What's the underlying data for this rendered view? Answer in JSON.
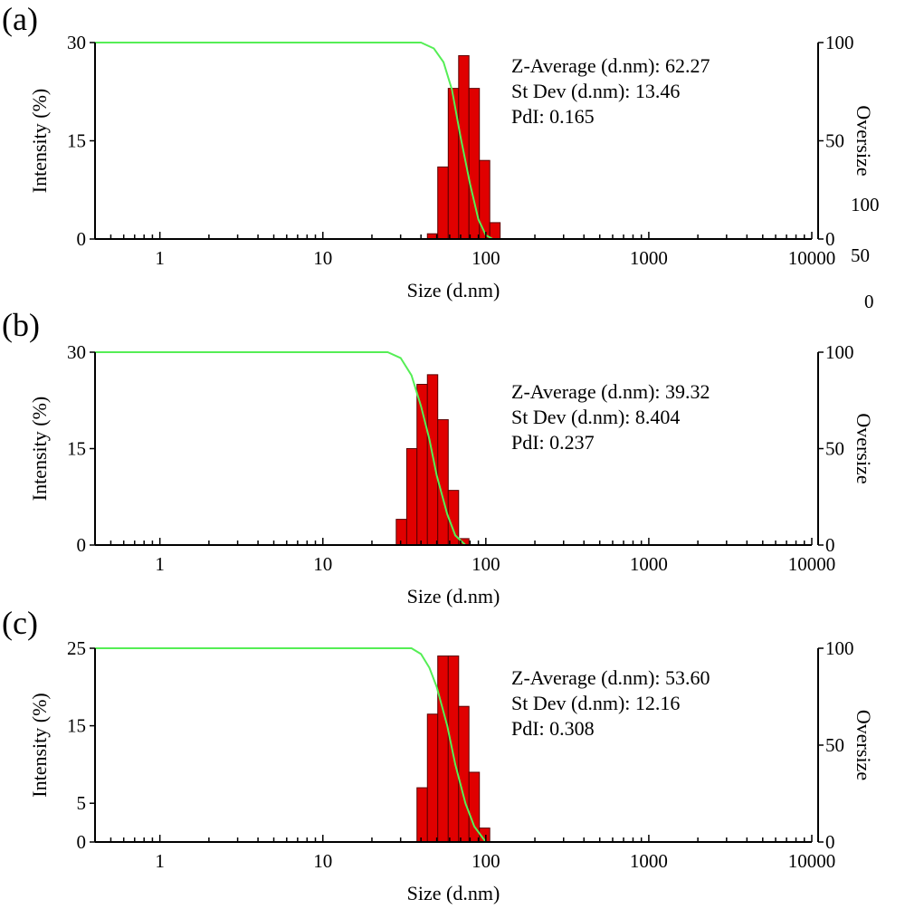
{
  "colors": {
    "bar_fill": "#e00000",
    "bar_stroke": "#5a0000",
    "curve": "#55ee55",
    "axis": "#000000"
  },
  "stray_labels": [
    "100",
    "50",
    "0"
  ],
  "chart_data": [
    {
      "type": "bar",
      "panel_label": "(a)",
      "xlabel": "Size (d.nm)",
      "ylabel": "Intensity (%)",
      "y2label": "Oversize",
      "xscale": "log",
      "xlim": [
        0.4,
        10000
      ],
      "xticks": [
        1,
        10,
        100,
        1000,
        10000
      ],
      "xtick_labels": [
        "1",
        "10",
        "100",
        "1000",
        "10000"
      ],
      "ylim": [
        0,
        30
      ],
      "yticks": [
        0,
        15,
        30
      ],
      "ytick_labels": [
        "0",
        "15",
        "30"
      ],
      "y2lim": [
        0,
        100
      ],
      "y2ticks": [
        0,
        50,
        100
      ],
      "y2tick_labels": [
        "0",
        "50",
        "100"
      ],
      "stats": [
        "Z-Average (d.nm): 62.27",
        "St Dev (d.nm): 13.46",
        "PdI: 0.165"
      ],
      "bars": [
        {
          "x0": 43.8,
          "x1": 50.7,
          "y": 0.8
        },
        {
          "x0": 50.7,
          "x1": 58.8,
          "y": 11.0
        },
        {
          "x0": 58.8,
          "x1": 68.1,
          "y": 23.0
        },
        {
          "x0": 68.1,
          "x1": 78.8,
          "y": 28.0
        },
        {
          "x0": 78.8,
          "x1": 91.3,
          "y": 23.0
        },
        {
          "x0": 91.3,
          "x1": 105.7,
          "y": 12.0
        },
        {
          "x0": 105.7,
          "x1": 122.4,
          "y": 2.5
        }
      ],
      "oversize_curve": {
        "x": [
          0.4,
          40,
          48,
          55,
          62,
          70,
          80,
          90,
          100,
          110,
          10000
        ],
        "y": [
          100,
          100,
          97,
          90,
          76,
          52,
          28,
          10,
          2,
          0,
          0
        ]
      }
    },
    {
      "type": "bar",
      "panel_label": "(b)",
      "xlabel": "Size (d.nm)",
      "ylabel": "Intensity (%)",
      "y2label": "Oversize",
      "xscale": "log",
      "xlim": [
        0.4,
        10000
      ],
      "xticks": [
        1,
        10,
        100,
        1000,
        10000
      ],
      "xtick_labels": [
        "1",
        "10",
        "100",
        "1000",
        "10000"
      ],
      "ylim": [
        0,
        30
      ],
      "yticks": [
        0,
        15,
        30
      ],
      "ytick_labels": [
        "0",
        "15",
        "30"
      ],
      "y2lim": [
        0,
        100
      ],
      "y2ticks": [
        0,
        50,
        100
      ],
      "y2tick_labels": [
        "0",
        "50",
        "100"
      ],
      "stats": [
        "Z-Average (d.nm): 39.32",
        "St Dev (d.nm): 8.404",
        "PdI: 0.237"
      ],
      "bars": [
        {
          "x0": 28.2,
          "x1": 32.7,
          "y": 4.0
        },
        {
          "x0": 32.7,
          "x1": 37.8,
          "y": 15.0
        },
        {
          "x0": 37.8,
          "x1": 43.8,
          "y": 25.0
        },
        {
          "x0": 43.8,
          "x1": 50.7,
          "y": 26.5
        },
        {
          "x0": 50.7,
          "x1": 58.8,
          "y": 19.5
        },
        {
          "x0": 58.8,
          "x1": 68.1,
          "y": 8.5
        },
        {
          "x0": 68.1,
          "x1": 78.8,
          "y": 1.0
        }
      ],
      "oversize_curve": {
        "x": [
          0.4,
          25,
          30,
          35,
          40,
          45,
          50,
          58,
          65,
          75,
          10000
        ],
        "y": [
          100,
          100,
          97,
          88,
          72,
          55,
          36,
          16,
          5,
          0,
          0
        ]
      }
    },
    {
      "type": "bar",
      "panel_label": "(c)",
      "xlabel": "Size (d.nm)",
      "ylabel": "Intensity (%)",
      "y2label": "Oversize",
      "xscale": "log",
      "xlim": [
        0.4,
        10000
      ],
      "xticks": [
        1,
        10,
        100,
        1000,
        10000
      ],
      "xtick_labels": [
        "1",
        "10",
        "100",
        "1000",
        "10000"
      ],
      "ylim": [
        0,
        25
      ],
      "yticks": [
        0,
        5,
        15,
        25
      ],
      "ytick_labels": [
        "0",
        "5",
        "15",
        "25"
      ],
      "y2lim": [
        0,
        100
      ],
      "y2ticks": [
        0,
        50,
        100
      ],
      "y2tick_labels": [
        "0",
        "50",
        "100"
      ],
      "stats": [
        "Z-Average (d.nm): 53.60",
        "St Dev (d.nm): 12.16",
        "PdI: 0.308"
      ],
      "bars": [
        {
          "x0": 37.8,
          "x1": 43.8,
          "y": 7.0
        },
        {
          "x0": 43.8,
          "x1": 50.7,
          "y": 16.5
        },
        {
          "x0": 50.7,
          "x1": 58.8,
          "y": 24.0
        },
        {
          "x0": 58.8,
          "x1": 68.1,
          "y": 24.0
        },
        {
          "x0": 68.1,
          "x1": 78.8,
          "y": 17.5
        },
        {
          "x0": 78.8,
          "x1": 91.3,
          "y": 9.0
        },
        {
          "x0": 91.3,
          "x1": 105.7,
          "y": 1.8
        }
      ],
      "oversize_curve": {
        "x": [
          0.4,
          35,
          40,
          45,
          50,
          58,
          65,
          75,
          85,
          100,
          10000
        ],
        "y": [
          100,
          100,
          97,
          90,
          80,
          60,
          40,
          20,
          8,
          0,
          0
        ]
      }
    }
  ]
}
